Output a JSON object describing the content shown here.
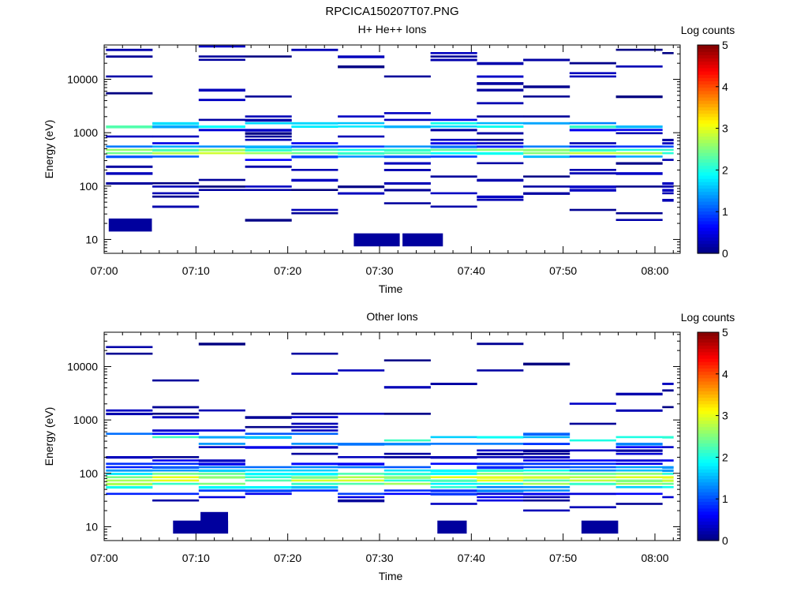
{
  "page": {
    "title": "RPCICA150207T07.PNG"
  },
  "chart_data": [
    {
      "type": "heatmap",
      "title": "H+ He++ Ions",
      "xlabel": "Time",
      "ylabel": "Energy (eV)",
      "y_scale": "log",
      "ylim": [
        5.5,
        44000
      ],
      "x_ticks": [
        "07:00",
        "07:10",
        "07:20",
        "07:30",
        "07:40",
        "07:50",
        "08:00"
      ],
      "y_ticks": [
        "10",
        "100",
        "1000",
        "10000"
      ],
      "colorbar": {
        "label": "Log counts",
        "ticks": [
          "0",
          "1",
          "2",
          "3",
          "4",
          "5"
        ],
        "range": [
          0,
          5
        ]
      },
      "time_range": [
        "07:00",
        "08:02"
      ],
      "cell_intensity_range": [
        0,
        3
      ]
    },
    {
      "type": "heatmap",
      "title": "Other Ions",
      "xlabel": "Time",
      "ylabel": "Energy (eV)",
      "y_scale": "log",
      "ylim": [
        5.5,
        44000
      ],
      "x_ticks": [
        "07:00",
        "07:10",
        "07:20",
        "07:30",
        "07:40",
        "07:50",
        "08:00"
      ],
      "y_ticks": [
        "10",
        "100",
        "1000",
        "10000"
      ],
      "colorbar": {
        "label": "Log counts",
        "ticks": [
          "0",
          "1",
          "2",
          "3",
          "4",
          "5"
        ],
        "range": [
          0,
          5
        ]
      },
      "time_range": [
        "07:00",
        "08:02"
      ],
      "cell_intensity_range": [
        0,
        3
      ]
    }
  ]
}
